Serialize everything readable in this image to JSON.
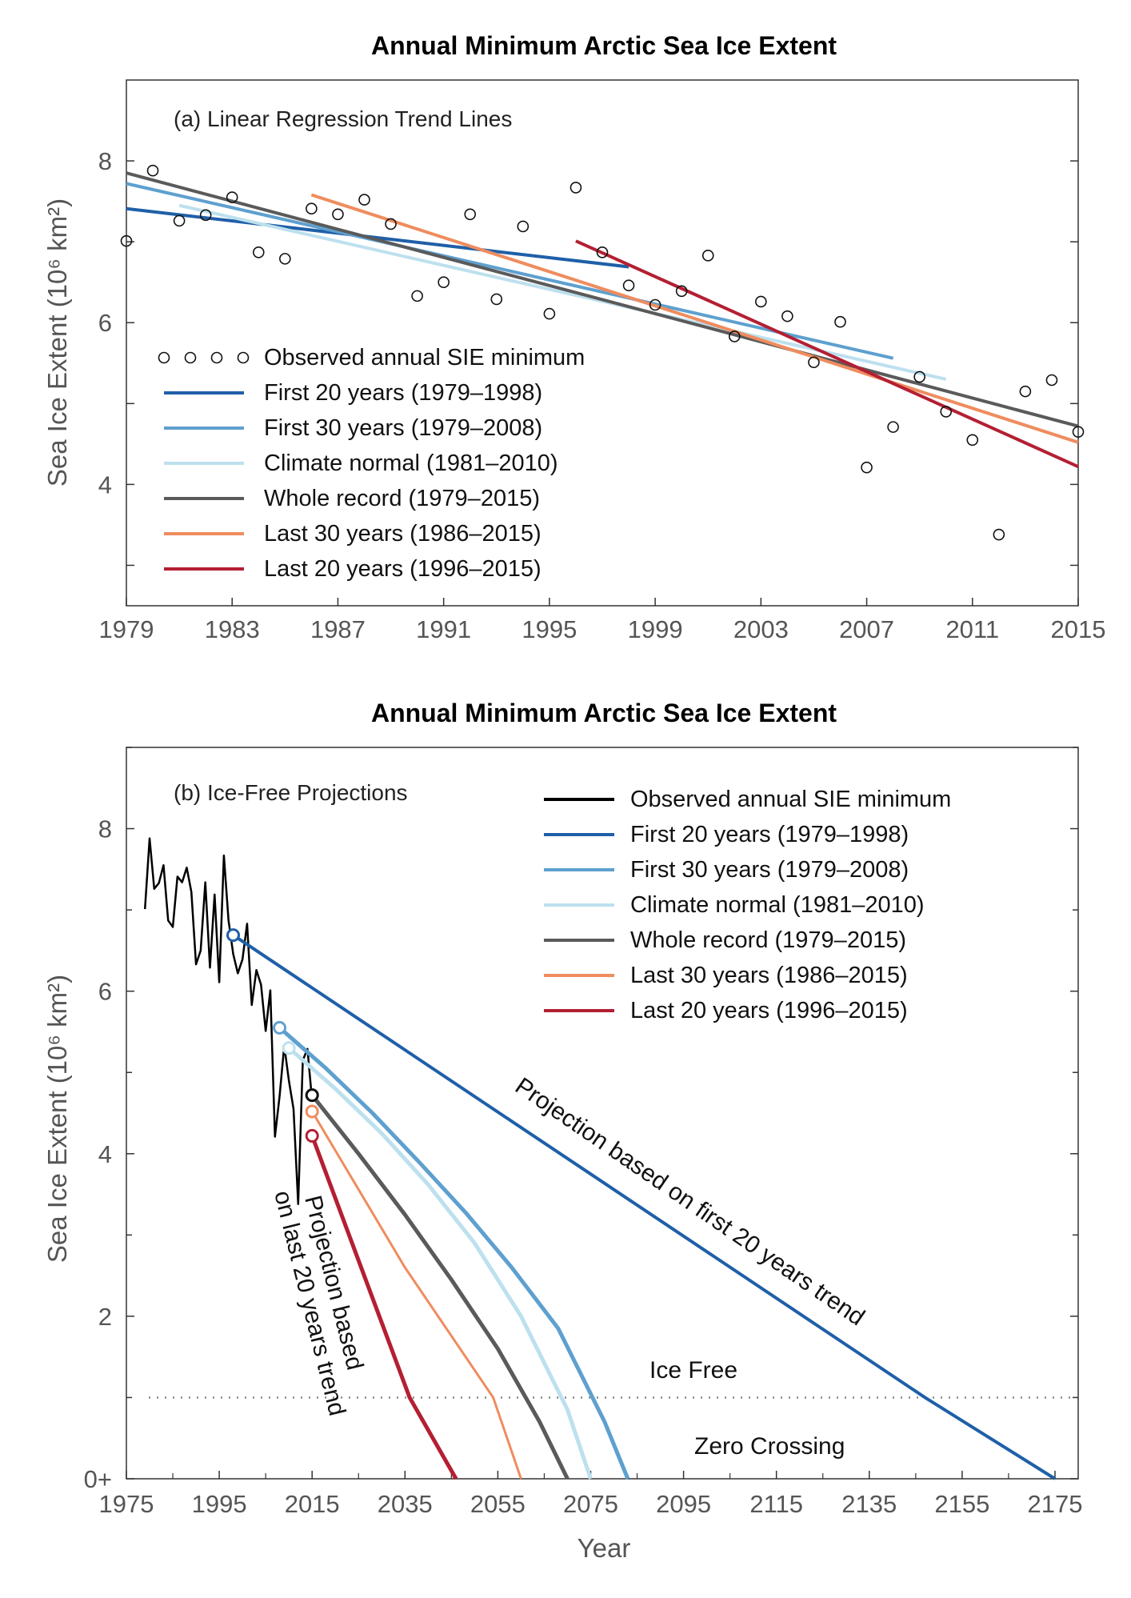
{
  "chart_data": [
    {
      "type": "scatter",
      "title": "Annual Minimum Arctic Sea Ice Extent",
      "panel_label": "(a) Linear Regression Trend Lines",
      "xlabel": "",
      "ylabel": "Sea Ice Extent  (10⁶ km²)",
      "xlim": [
        1979,
        2015
      ],
      "ylim": [
        2.5,
        9.0
      ],
      "xticks": [
        "1979",
        "1983",
        "1987",
        "1991",
        "1995",
        "1999",
        "2003",
        "2007",
        "2011",
        "2015"
      ],
      "yticks": [
        "4",
        "6",
        "8"
      ],
      "grid": false,
      "legend_position": "lower-left",
      "observed": {
        "name": "Observed annual SIE minimum",
        "x": [
          1979,
          1980,
          1981,
          1982,
          1983,
          1984,
          1985,
          1986,
          1987,
          1988,
          1989,
          1990,
          1991,
          1992,
          1993,
          1994,
          1995,
          1996,
          1997,
          1998,
          1999,
          2000,
          2001,
          2002,
          2003,
          2004,
          2005,
          2006,
          2007,
          2008,
          2009,
          2010,
          2011,
          2012,
          2013,
          2014,
          2015
        ],
        "y": [
          7.01,
          7.88,
          7.26,
          7.33,
          7.55,
          6.87,
          6.79,
          7.41,
          7.34,
          7.52,
          7.22,
          6.33,
          6.5,
          7.34,
          6.29,
          7.19,
          6.11,
          7.67,
          6.87,
          6.46,
          6.22,
          6.39,
          6.83,
          5.83,
          6.26,
          6.08,
          5.51,
          6.01,
          4.21,
          4.71,
          5.33,
          4.9,
          4.55,
          3.38,
          5.15,
          5.29,
          4.65
        ]
      },
      "series": [
        {
          "name": "First 20 years (1979–1998)",
          "color": "#1f5fa8",
          "x": [
            1979,
            1998
          ],
          "y": [
            7.41,
            6.69
          ]
        },
        {
          "name": "First 30 years (1979–2008)",
          "color": "#5ea0cf",
          "x": [
            1979,
            2008
          ],
          "y": [
            7.72,
            5.56
          ]
        },
        {
          "name": "Climate normal (1981–2010)",
          "color": "#bde0ee",
          "x": [
            1981,
            2010
          ],
          "y": [
            7.45,
            5.3
          ]
        },
        {
          "name": "Whole record (1979–2015)",
          "color": "#5a5a5a",
          "x": [
            1979,
            2015
          ],
          "y": [
            7.85,
            4.72
          ]
        },
        {
          "name": "Last 30 years (1986–2015)",
          "color": "#ef8c5e",
          "x": [
            1986,
            2015
          ],
          "y": [
            7.58,
            4.52
          ]
        },
        {
          "name": "Last 20 years (1996–2015)",
          "color": "#b41f33",
          "x": [
            1996,
            2015
          ],
          "y": [
            7.01,
            4.22
          ]
        }
      ]
    },
    {
      "type": "line",
      "title": "Annual Minimum Arctic Sea Ice Extent",
      "panel_label": "(b) Ice-Free Projections",
      "xlabel": "Year",
      "ylabel": "Sea Ice Extent  (10⁶ km²)",
      "xlim": [
        1975,
        2180
      ],
      "ylim": [
        0,
        9.0
      ],
      "xticks": [
        "1975",
        "1995",
        "2015",
        "2035",
        "2055",
        "2075",
        "2095",
        "2115",
        "2135",
        "2155",
        "2175"
      ],
      "yticks": [
        "0+",
        "2",
        "4",
        "6",
        "8"
      ],
      "grid": false,
      "legend_position": "top-right",
      "ice_free_threshold": 1.0,
      "observed_name": "Observed annual SIE minimum",
      "observed_color": "#000000",
      "series": [
        {
          "name": "First 20 years (1979–1998)",
          "color": "#1f5fa8",
          "width": 4,
          "x": [
            1998,
            2147,
            2175
          ],
          "y": [
            6.69,
            1.0,
            0.0
          ]
        },
        {
          "name": "First 30 years (1979–2008)",
          "color": "#5ea0cf",
          "width": 5,
          "x": [
            2008,
            2018,
            2028,
            2038,
            2048,
            2058,
            2068,
            2078,
            2083
          ],
          "y": [
            5.55,
            5.05,
            4.5,
            3.9,
            3.28,
            2.6,
            1.85,
            0.7,
            0.0
          ]
        },
        {
          "name": "Climate normal (1981–2010)",
          "color": "#bde0ee",
          "width": 5,
          "x": [
            2010,
            2020,
            2030,
            2040,
            2050,
            2060,
            2070,
            2075
          ],
          "y": [
            5.3,
            4.8,
            4.25,
            3.62,
            2.9,
            2.0,
            0.85,
            0.0
          ]
        },
        {
          "name": "Whole record (1979–2015)",
          "color": "#5a5a5a",
          "width": 5,
          "x": [
            2015,
            2025,
            2035,
            2045,
            2055,
            2064,
            2070
          ],
          "y": [
            4.72,
            4.0,
            3.25,
            2.45,
            1.6,
            0.7,
            0.0
          ]
        },
        {
          "name": "Last 30 years (1986–2015)",
          "color": "#ef8c5e",
          "width": 3,
          "x": [
            2015,
            2035,
            2054,
            2060
          ],
          "y": [
            4.52,
            2.6,
            1.0,
            0.0
          ]
        },
        {
          "name": "Last 20 years (1996–2015)",
          "color": "#b41f33",
          "width": 5,
          "x": [
            2015,
            2036,
            2046
          ],
          "y": [
            4.22,
            1.0,
            0.0
          ]
        }
      ],
      "annotations": {
        "first20": "Projection based on first 20 years trend",
        "last20_line1": "Projection based",
        "last20_line2": "on last 20 years trend",
        "ice_free": "Ice Free",
        "zero_crossing": "Zero Crossing"
      }
    }
  ]
}
